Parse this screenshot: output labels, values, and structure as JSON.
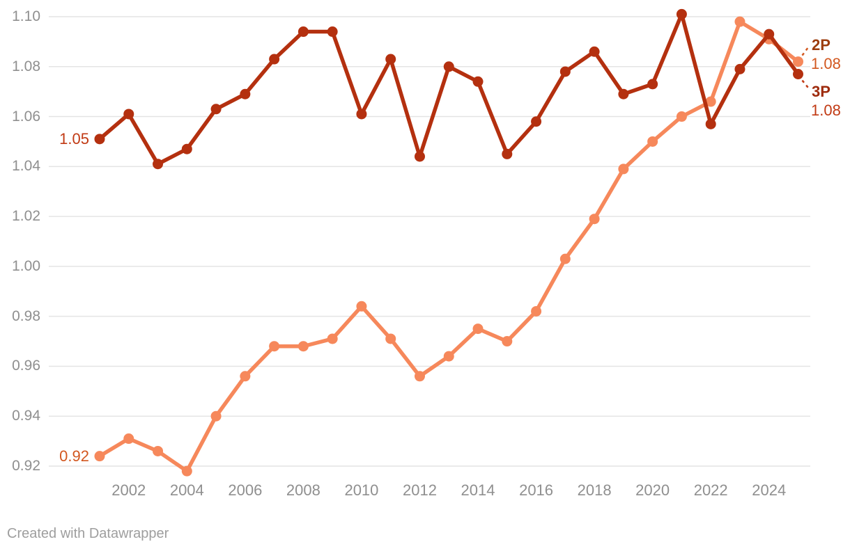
{
  "chart_data": {
    "type": "line",
    "x": [
      2001,
      2002,
      2003,
      2004,
      2005,
      2006,
      2007,
      2008,
      2009,
      2010,
      2011,
      2012,
      2013,
      2014,
      2015,
      2016,
      2017,
      2018,
      2019,
      2020,
      2021,
      2022,
      2023,
      2024,
      2025
    ],
    "series": [
      {
        "name": "2P",
        "values": [
          0.924,
          0.931,
          0.926,
          0.918,
          0.94,
          0.956,
          0.968,
          0.968,
          0.971,
          0.984,
          0.971,
          0.956,
          0.964,
          0.975,
          0.97,
          0.982,
          1.003,
          1.019,
          1.039,
          1.05,
          1.06,
          1.066,
          1.098,
          1.091,
          1.082
        ],
        "color": "#F6885B"
      },
      {
        "name": "3P",
        "values": [
          1.051,
          1.061,
          1.041,
          1.047,
          1.063,
          1.069,
          1.083,
          1.094,
          1.094,
          1.061,
          1.083,
          1.044,
          1.08,
          1.074,
          1.045,
          1.058,
          1.078,
          1.086,
          1.069,
          1.073,
          1.101,
          1.057,
          1.079,
          1.093,
          1.077
        ],
        "color": "#B4300F"
      }
    ],
    "title": "",
    "xlabel": "",
    "ylabel": "",
    "ylim": [
      0.92,
      1.1
    ],
    "grid": "horizontal",
    "legend_position": "end-of-line-labels",
    "y_tick_labels": [
      "1.10",
      "1.08",
      "1.06",
      "1.04",
      "1.02",
      "1.00",
      "0.98",
      "0.96",
      "0.94",
      "0.92"
    ],
    "x_tick_labels": [
      "2002",
      "2004",
      "2006",
      "2008",
      "2010",
      "2012",
      "2014",
      "2016",
      "2018",
      "2020",
      "2022",
      "2024"
    ],
    "annotations": {
      "start_3p": "1.05",
      "start_2p": "0.92",
      "end_2p_name": "2P",
      "end_2p_value": "1.08",
      "end_3p_name": "3P",
      "end_3p_value": "1.08"
    }
  },
  "colors": {
    "grid": "#E4E4E4",
    "tick_text": "#8F8F8F",
    "label_2p_value": "#D2571F",
    "label_2p_name": "#9C3D0E",
    "label_3p_value": "#C13A14",
    "label_3p_name": "#9E2B0D"
  },
  "footer": {
    "credit": "Created with Datawrapper"
  }
}
